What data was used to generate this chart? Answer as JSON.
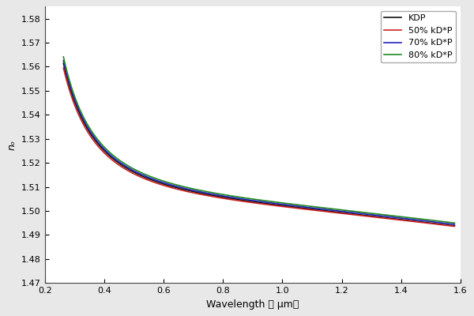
{
  "title": "",
  "xlabel": "Wavelength （ μm）",
  "ylabel": "nₒ",
  "xlim": [
    0.2,
    1.6
  ],
  "ylim": [
    1.47,
    1.585
  ],
  "xticks": [
    0.2,
    0.4,
    0.6,
    0.8,
    1.0,
    1.2,
    1.4,
    1.6
  ],
  "yticks": [
    1.47,
    1.48,
    1.49,
    1.5,
    1.51,
    1.52,
    1.53,
    1.54,
    1.55,
    1.56,
    1.57,
    1.58
  ],
  "series": [
    {
      "label": "KDP",
      "color": "#111111",
      "lw": 1.2
    },
    {
      "label": "50% kD*P",
      "color": "#cc2222",
      "lw": 1.2
    },
    {
      "label": "70% kD*P",
      "color": "#2222bb",
      "lw": 1.2
    },
    {
      "label": "80% kD*P",
      "color": "#228822",
      "lw": 1.2
    }
  ],
  "background_color": "#ffffff",
  "legend_loc": "upper right",
  "legend_fontsize": 8,
  "tick_fontsize": 8,
  "label_fontsize": 9
}
